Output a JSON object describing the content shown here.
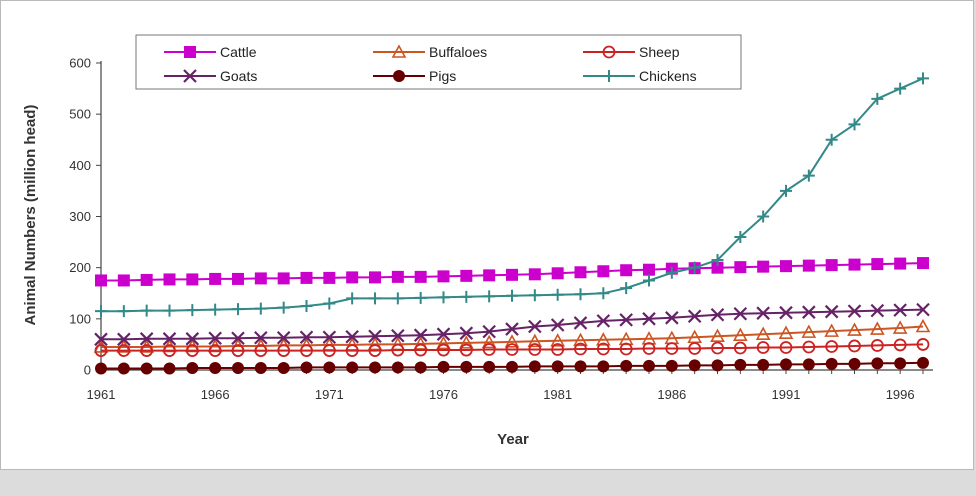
{
  "chart_data": {
    "type": "line",
    "title": "",
    "xlabel": "Year",
    "ylabel": "Animal Numbers (million head)",
    "xlim": [
      1961,
      1997
    ],
    "ylim": [
      0,
      600
    ],
    "x_ticks": [
      "1961",
      "1966",
      "1971",
      "1976",
      "1981",
      "1986",
      "1991",
      "1996"
    ],
    "y_ticks": [
      "0",
      "100",
      "200",
      "300",
      "400",
      "500",
      "600"
    ],
    "grid": false,
    "legend_position": "top",
    "x": [
      1961,
      1962,
      1963,
      1964,
      1965,
      1966,
      1967,
      1968,
      1969,
      1970,
      1971,
      1972,
      1973,
      1974,
      1975,
      1976,
      1977,
      1978,
      1979,
      1980,
      1981,
      1982,
      1983,
      1984,
      1985,
      1986,
      1987,
      1988,
      1989,
      1990,
      1991,
      1992,
      1993,
      1994,
      1995,
      1996,
      1997
    ],
    "series": [
      {
        "name": "Cattle",
        "color": "#cc00cc",
        "marker": "square",
        "values": [
          175,
          175,
          176,
          177,
          177,
          178,
          178,
          179,
          179,
          180,
          180,
          181,
          181,
          182,
          182,
          183,
          184,
          185,
          186,
          187,
          189,
          191,
          193,
          195,
          196,
          198,
          199,
          200,
          201,
          202,
          203,
          204,
          205,
          206,
          207,
          208,
          209
        ]
      },
      {
        "name": "Buffaloes",
        "color": "#cc5522",
        "marker": "triangle",
        "values": [
          45,
          45,
          45,
          46,
          46,
          46,
          47,
          47,
          48,
          48,
          49,
          49,
          50,
          50,
          51,
          52,
          53,
          54,
          55,
          56,
          57,
          58,
          59,
          60,
          61,
          62,
          64,
          66,
          68,
          70,
          72,
          74,
          76,
          78,
          80,
          82,
          85
        ]
      },
      {
        "name": "Sheep",
        "color": "#cc2222",
        "marker": "circle-open",
        "values": [
          38,
          38,
          38,
          38,
          38,
          38,
          38,
          38,
          38,
          38,
          38,
          38,
          38,
          39,
          39,
          39,
          39,
          40,
          40,
          40,
          40,
          41,
          41,
          41,
          42,
          42,
          42,
          43,
          43,
          44,
          44,
          45,
          46,
          47,
          48,
          49,
          50
        ]
      },
      {
        "name": "Goats",
        "color": "#662266",
        "marker": "x",
        "values": [
          60,
          60,
          61,
          61,
          61,
          62,
          62,
          63,
          63,
          64,
          64,
          65,
          66,
          67,
          68,
          70,
          72,
          75,
          80,
          85,
          88,
          92,
          96,
          98,
          100,
          102,
          105,
          108,
          110,
          111,
          112,
          113,
          114,
          115,
          116,
          117,
          118
        ]
      },
      {
        "name": "Pigs",
        "color": "#660000",
        "marker": "circle-filled",
        "values": [
          3,
          3,
          3,
          3,
          4,
          4,
          4,
          4,
          4,
          5,
          5,
          5,
          5,
          5,
          5,
          6,
          6,
          6,
          6,
          7,
          7,
          7,
          7,
          8,
          8,
          8,
          9,
          9,
          10,
          10,
          11,
          11,
          12,
          12,
          13,
          13,
          14
        ]
      },
      {
        "name": "Chickens",
        "color": "#338888",
        "marker": "plus",
        "values": [
          115,
          115,
          116,
          116,
          117,
          118,
          119,
          120,
          122,
          125,
          130,
          140,
          140,
          140,
          141,
          142,
          143,
          144,
          145,
          146,
          147,
          148,
          150,
          160,
          175,
          190,
          200,
          215,
          260,
          300,
          350,
          380,
          450,
          480,
          530,
          550,
          570
        ]
      }
    ]
  }
}
